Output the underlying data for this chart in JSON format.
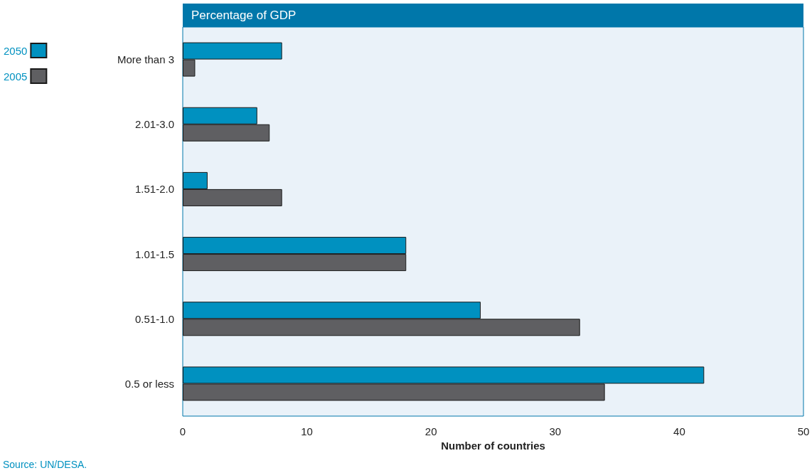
{
  "chart_data": {
    "type": "bar",
    "orientation": "horizontal",
    "title": "Percentage of GDP",
    "xlabel": "Number of countries",
    "categories": [
      "More than 3",
      "2.01-3.0",
      "1.51-2.0",
      "1.01-1.5",
      "0.51-1.0",
      "0.5 or less"
    ],
    "series": [
      {
        "name": "2050",
        "color": "#0091c0",
        "values": [
          8,
          6,
          2,
          18,
          24,
          42
        ]
      },
      {
        "name": "2005",
        "color": "#5f5f62",
        "values": [
          1,
          7,
          8,
          18,
          32,
          34
        ]
      }
    ],
    "xlim": [
      0,
      50
    ],
    "xticks": [
      0,
      10,
      20,
      30,
      40,
      50
    ],
    "grid": false,
    "legend": "top left",
    "annotations": [
      "Source: UN/DESA."
    ]
  }
}
